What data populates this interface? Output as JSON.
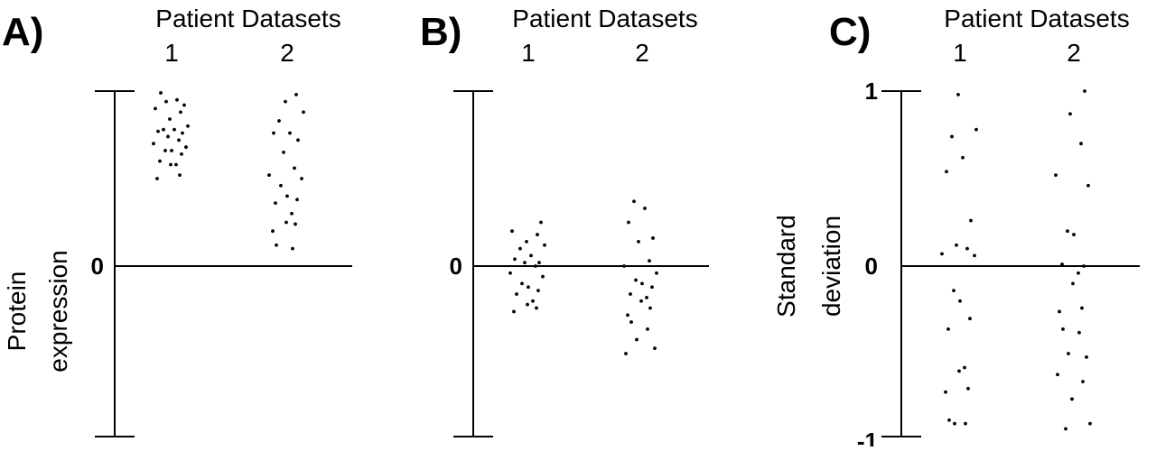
{
  "chart_data": [
    {
      "type": "scatter",
      "panel": "A)",
      "title": "Patient Datasets",
      "categories": [
        "1",
        "2"
      ],
      "ylabel_lines": [
        "Protein",
        "expression"
      ],
      "y_tick_labels": [
        {
          "value": 0,
          "label": "0"
        }
      ],
      "ylim": [
        -1,
        1
      ],
      "series": [
        {
          "category": "1",
          "values": [
            0.99,
            0.95,
            0.94,
            0.92,
            0.9,
            0.88,
            0.84,
            0.8,
            0.78,
            0.78,
            0.77,
            0.76,
            0.74,
            0.72,
            0.7,
            0.68,
            0.66,
            0.66,
            0.64,
            0.6,
            0.58,
            0.58,
            0.52,
            0.5
          ]
        },
        {
          "category": "2",
          "values": [
            0.98,
            0.94,
            0.88,
            0.83,
            0.76,
            0.76,
            0.72,
            0.65,
            0.56,
            0.52,
            0.5,
            0.46,
            0.4,
            0.38,
            0.36,
            0.3,
            0.25,
            0.24,
            0.2,
            0.12,
            0.1
          ]
        }
      ]
    },
    {
      "type": "scatter",
      "panel": "B)",
      "title": "Patient Datasets",
      "categories": [
        "1",
        "2"
      ],
      "y_tick_labels": [
        {
          "value": 0,
          "label": "0"
        }
      ],
      "ylim": [
        -1,
        1
      ],
      "series": [
        {
          "category": "1",
          "values": [
            0.25,
            0.2,
            0.18,
            0.14,
            0.12,
            0.1,
            0.06,
            0.04,
            0.02,
            0.02,
            0.0,
            -0.04,
            -0.06,
            -0.1,
            -0.12,
            -0.14,
            -0.16,
            -0.2,
            -0.22,
            -0.24,
            -0.26
          ]
        },
        {
          "category": "2",
          "values": [
            0.37,
            0.33,
            0.25,
            0.16,
            0.14,
            0.03,
            0.0,
            -0.04,
            -0.08,
            -0.1,
            -0.12,
            -0.16,
            -0.18,
            -0.2,
            -0.24,
            -0.28,
            -0.32,
            -0.36,
            -0.42,
            -0.47,
            -0.5
          ]
        }
      ]
    },
    {
      "type": "scatter",
      "panel": "C)",
      "title": "Patient Datasets",
      "categories": [
        "1",
        "2"
      ],
      "ylabel_lines": [
        "Standard",
        "deviation"
      ],
      "y_tick_labels": [
        {
          "value": 1,
          "label": "1"
        },
        {
          "value": 0,
          "label": "0"
        },
        {
          "value": -1,
          "label": "-1"
        }
      ],
      "ylim": [
        -1,
        1
      ],
      "series": [
        {
          "category": "1",
          "values": [
            0.98,
            0.78,
            0.74,
            0.62,
            0.54,
            0.26,
            0.12,
            0.1,
            0.07,
            0.06,
            -0.14,
            -0.2,
            -0.3,
            -0.36,
            -0.58,
            -0.6,
            -0.7,
            -0.72,
            -0.88,
            -0.9,
            -0.9
          ]
        },
        {
          "category": "2",
          "values": [
            1.0,
            0.87,
            0.7,
            0.52,
            0.46,
            0.2,
            0.18,
            0.0,
            0.01,
            -0.04,
            -0.1,
            -0.24,
            -0.26,
            -0.36,
            -0.38,
            -0.5,
            -0.52,
            -0.62,
            -0.66,
            -0.76,
            -0.9,
            -0.93
          ]
        }
      ]
    }
  ]
}
